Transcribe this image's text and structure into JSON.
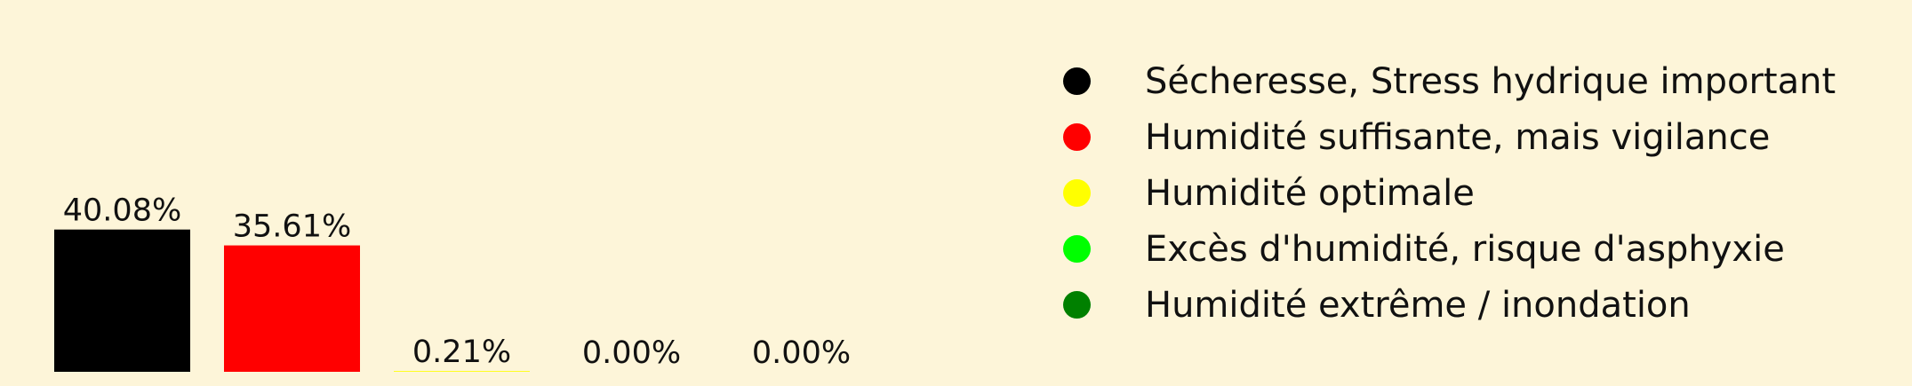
{
  "chart_data": {
    "type": "bar",
    "categories": [
      "Sécheresse, Stress hydrique important",
      "Humidité suffisante, mais vigilance",
      "Humidité optimale",
      "Excès d'humidité, risque d'asphyxie",
      "Humidité extrême / inondation"
    ],
    "values": [
      40.08,
      35.61,
      0.21,
      0.0,
      0.0
    ],
    "value_labels": [
      "40.08%",
      "35.61%",
      "0.21%",
      "0.00%",
      "0.00%"
    ],
    "colors": [
      "#000000",
      "#ff0000",
      "#ffff00",
      "#00ff00",
      "#008000"
    ],
    "ylim": [
      0,
      42
    ],
    "grid": false,
    "legend_position": "right",
    "title": "",
    "xlabel": "",
    "ylabel": ""
  }
}
